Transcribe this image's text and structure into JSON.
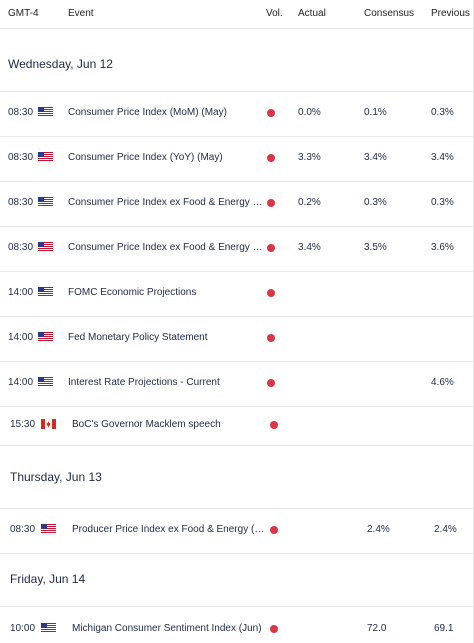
{
  "columns": {
    "tz": "GMT-4",
    "event": "Event",
    "vol": "Vol.",
    "actual": "Actual",
    "consensus": "Consensus",
    "previous": "Previous"
  },
  "colors": {
    "impact_high": "#dc3545",
    "text": "#1f2a4a",
    "divider": "#e6e6ea"
  },
  "days": [
    {
      "label": "Wednesday, Jun 12",
      "rows": [
        {
          "time": "08:30",
          "flag": "us-flag-icon",
          "event": "Consumer Price Index (MoM) (May)",
          "actual": "0.0%",
          "consensus": "0.1%",
          "previous": "0.3%"
        },
        {
          "time": "08:30",
          "flag": "us-flag-icon",
          "event": "Consumer Price Index (YoY) (May)",
          "actual": "3.3%",
          "consensus": "3.4%",
          "previous": "3.4%"
        },
        {
          "time": "08:30",
          "flag": "us-flag-icon",
          "event": "Consumer Price Index ex Food & Energy (MoM) (May)",
          "actual": "0.2%",
          "consensus": "0.3%",
          "previous": "0.3%"
        },
        {
          "time": "08:30",
          "flag": "us-flag-icon",
          "event": "Consumer Price Index ex Food & Energy (YoY) (May)",
          "actual": "3.4%",
          "consensus": "3.5%",
          "previous": "3.6%"
        },
        {
          "time": "14:00",
          "flag": "us-flag-icon",
          "event": "FOMC Economic Projections",
          "actual": "",
          "consensus": "",
          "previous": ""
        },
        {
          "time": "14:00",
          "flag": "us-flag-icon",
          "event": "Fed Monetary Policy Statement",
          "actual": "",
          "consensus": "",
          "previous": ""
        },
        {
          "time": "14:00",
          "flag": "us-flag-icon",
          "event": "Interest Rate Projections - Current",
          "actual": "",
          "consensus": "",
          "previous": "4.6%"
        },
        {
          "time": "15:30",
          "flag": "ca-flag-icon",
          "event": "BoC's Governor Macklem speech",
          "actual": "",
          "consensus": "",
          "previous": ""
        }
      ]
    },
    {
      "label": "Thursday, Jun 13",
      "rows": [
        {
          "time": "08:30",
          "flag": "us-flag-icon",
          "event": "Producer Price Index ex Food & Energy (YoY) (May)",
          "actual": "",
          "consensus": "2.4%",
          "previous": "2.4%"
        }
      ]
    },
    {
      "label": "Friday, Jun 14",
      "rows": [
        {
          "time": "10:00",
          "flag": "us-flag-icon",
          "event": "Michigan Consumer Sentiment Index (Jun)",
          "actual": "",
          "consensus": "72.0",
          "previous": "69.1"
        }
      ]
    }
  ]
}
